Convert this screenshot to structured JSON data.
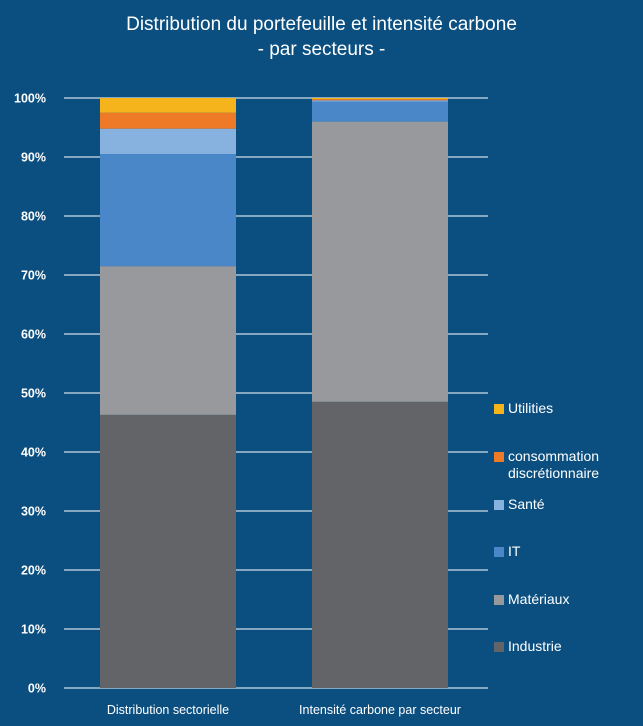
{
  "chart_data": {
    "type": "bar",
    "stacked": true,
    "title_lines": [
      "Distribution du portefeuille et intensité carbone",
      "- par secteurs -"
    ],
    "categories": [
      "Distribution sectorielle",
      "Intensité carbone par secteur"
    ],
    "series": [
      {
        "name": "Industrie",
        "color": "#626467",
        "values": [
          46.3,
          48.5
        ]
      },
      {
        "name": "Matériaux",
        "color": "#97999c",
        "values": [
          25.2,
          47.5
        ]
      },
      {
        "name": "IT",
        "color": "#4a87c9",
        "values": [
          19.0,
          3.4
        ]
      },
      {
        "name": "Santé",
        "color": "#87b2df",
        "values": [
          4.3,
          0.2
        ]
      },
      {
        "name": "consommation\ndiscrétionnaire",
        "color": "#ee7a27",
        "values": [
          2.7,
          0.2
        ]
      },
      {
        "name": "Utilities",
        "color": "#f5b31c",
        "values": [
          2.5,
          0.2
        ]
      }
    ],
    "y_ticks": [
      "0%",
      "10%",
      "20%",
      "30%",
      "40%",
      "50%",
      "60%",
      "70%",
      "80%",
      "90%",
      "100%"
    ],
    "ylim": [
      0,
      100
    ],
    "grid": true,
    "legend_position": "right",
    "xlabel": "",
    "ylabel": ""
  },
  "colors": {
    "background": "#0b4f80",
    "gridline": "#ffffff",
    "text": "#ffffff"
  }
}
